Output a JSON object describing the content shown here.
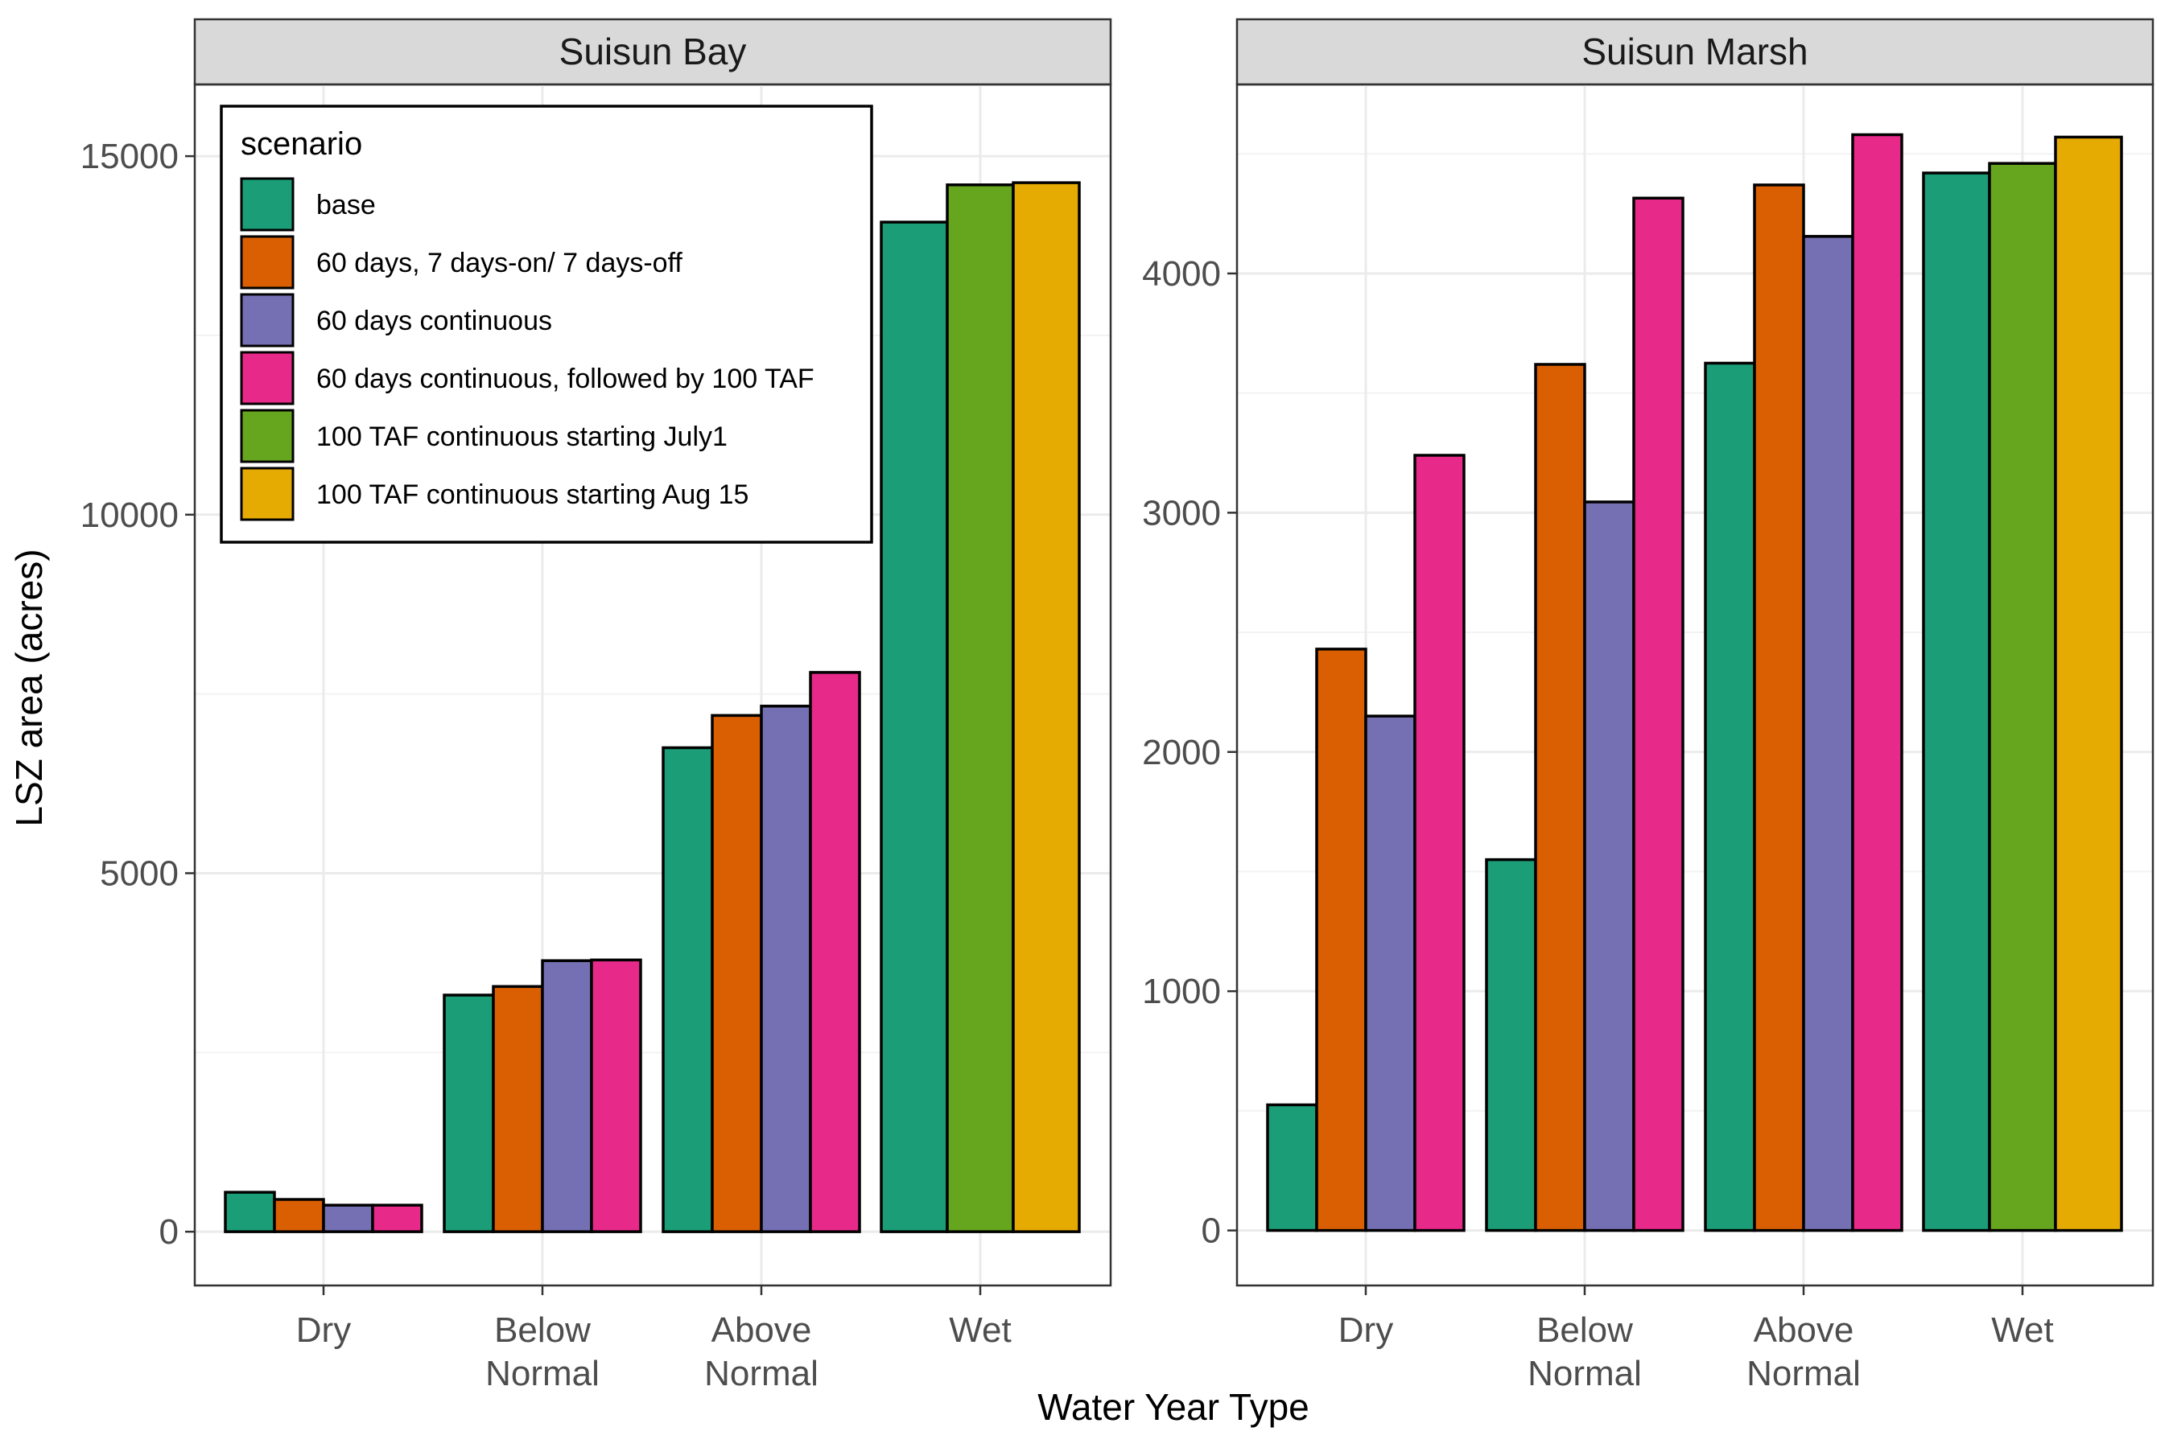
{
  "chart_data": [
    {
      "type": "bar",
      "panel": "Suisun Bay",
      "categories": [
        "Dry",
        "Below Normal",
        "Above Normal",
        "Wet"
      ],
      "category_lines": [
        [
          "Dry"
        ],
        [
          "Below",
          "Normal"
        ],
        [
          "Above",
          "Normal"
        ],
        [
          "Wet"
        ]
      ],
      "ylim": [
        -750,
        16000
      ],
      "yticks": [
        0,
        5000,
        10000,
        15000
      ],
      "yminor": [
        2500,
        7500,
        12500
      ],
      "groups": [
        {
          "category": "Dry",
          "bars": [
            {
              "scenario": "base",
              "value": 550
            },
            {
              "scenario": "60 days, 7 days-on/ 7 days-off",
              "value": 450
            },
            {
              "scenario": "60 days continuous",
              "value": 370
            },
            {
              "scenario": "60 days continuous, followed by 100 TAF",
              "value": 370
            }
          ]
        },
        {
          "category": "Below Normal",
          "bars": [
            {
              "scenario": "base",
              "value": 3300
            },
            {
              "scenario": "60 days, 7 days-on/ 7 days-off",
              "value": 3420
            },
            {
              "scenario": "60 days continuous",
              "value": 3780
            },
            {
              "scenario": "60 days continuous, followed by 100 TAF",
              "value": 3790
            }
          ]
        },
        {
          "category": "Above Normal",
          "bars": [
            {
              "scenario": "base",
              "value": 6750
            },
            {
              "scenario": "60 days, 7 days-on/ 7 days-off",
              "value": 7200
            },
            {
              "scenario": "60 days continuous",
              "value": 7330
            },
            {
              "scenario": "60 days continuous, followed by 100 TAF",
              "value": 7800
            }
          ]
        },
        {
          "category": "Wet",
          "bars": [
            {
              "scenario": "base",
              "value": 14080
            },
            {
              "scenario": "100 TAF continuous starting July1",
              "value": 14600
            },
            {
              "scenario": "100 TAF continuous starting Aug 15",
              "value": 14630
            }
          ]
        }
      ]
    },
    {
      "type": "bar",
      "panel": "Suisun Marsh",
      "categories": [
        "Dry",
        "Below Normal",
        "Above Normal",
        "Wet"
      ],
      "category_lines": [
        [
          "Dry"
        ],
        [
          "Below",
          "Normal"
        ],
        [
          "Above",
          "Normal"
        ],
        [
          "Wet"
        ]
      ],
      "ylim": [
        -230,
        4790
      ],
      "yticks": [
        0,
        1000,
        2000,
        3000,
        4000
      ],
      "yminor": [
        500,
        1500,
        2500,
        3500,
        4500
      ],
      "groups": [
        {
          "category": "Dry",
          "bars": [
            {
              "scenario": "base",
              "value": 525
            },
            {
              "scenario": "60 days, 7 days-on/ 7 days-off",
              "value": 2430
            },
            {
              "scenario": "60 days continuous",
              "value": 2150
            },
            {
              "scenario": "60 days continuous, followed by 100 TAF",
              "value": 3240
            }
          ]
        },
        {
          "category": "Below Normal",
          "bars": [
            {
              "scenario": "base",
              "value": 1550
            },
            {
              "scenario": "60 days, 7 days-on/ 7 days-off",
              "value": 3620
            },
            {
              "scenario": "60 days continuous",
              "value": 3045
            },
            {
              "scenario": "60 days continuous, followed by 100 TAF",
              "value": 4315
            }
          ]
        },
        {
          "category": "Above Normal",
          "bars": [
            {
              "scenario": "base",
              "value": 3625
            },
            {
              "scenario": "60 days, 7 days-on/ 7 days-off",
              "value": 4370
            },
            {
              "scenario": "60 days continuous",
              "value": 4155
            },
            {
              "scenario": "60 days continuous, followed by 100 TAF",
              "value": 4580
            }
          ]
        },
        {
          "category": "Wet",
          "bars": [
            {
              "scenario": "base",
              "value": 4420
            },
            {
              "scenario": "100 TAF continuous starting July1",
              "value": 4460
            },
            {
              "scenario": "100 TAF continuous starting Aug 15",
              "value": 4570
            }
          ]
        }
      ]
    }
  ],
  "axes": {
    "xlabel": "Water Year Type",
    "ylabel": "LSZ area (acres)"
  },
  "legend": {
    "title": "scenario",
    "placement": "top-left inside Suisun Bay panel",
    "items": [
      {
        "label": "base",
        "color": "#1b9e77"
      },
      {
        "label": "60 days, 7 days-on/ 7 days-off",
        "color": "#d95f02"
      },
      {
        "label": "60 days continuous",
        "color": "#7570b3"
      },
      {
        "label": "60 days continuous, followed by 100 TAF",
        "color": "#e7298a"
      },
      {
        "label": "100 TAF continuous starting July1",
        "color": "#66a61e"
      },
      {
        "label": "100 TAF continuous starting Aug 15",
        "color": "#e6ab02"
      }
    ]
  }
}
